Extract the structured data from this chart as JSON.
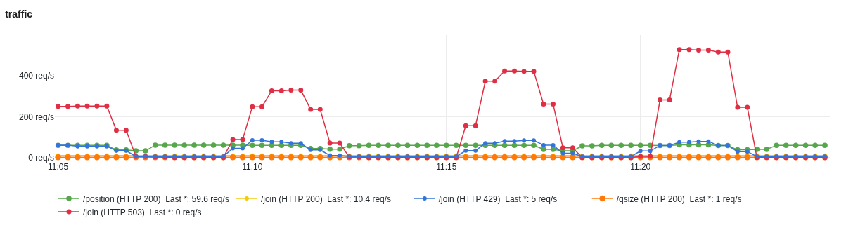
{
  "chart_data": {
    "type": "line",
    "title": "traffic",
    "legend": "bottom",
    "grid": true,
    "marker": "circle",
    "line_style": "solid",
    "x": [
      11.0833,
      11.0875,
      11.0917,
      11.0958,
      11.1,
      11.1042,
      11.1083,
      11.1125,
      11.1167,
      11.1208,
      11.125,
      11.1292,
      11.1333,
      11.1375,
      11.1417,
      11.1458,
      11.15,
      11.1542,
      11.1583,
      11.1625,
      11.1667,
      11.1708,
      11.175,
      11.1792,
      11.1833,
      11.1875,
      11.1917,
      11.1958,
      11.2,
      11.2042,
      11.2083,
      11.2125,
      11.2167,
      11.2208,
      11.225,
      11.2292,
      11.2333,
      11.2375,
      11.2417,
      11.2458,
      11.25,
      11.2542,
      11.2583,
      11.2625,
      11.2667,
      11.2708,
      11.275,
      11.2792,
      11.2833,
      11.2875,
      11.2917,
      11.2958,
      11.3,
      11.3042,
      11.3083,
      11.3125,
      11.3167,
      11.3208,
      11.325,
      11.3292,
      11.3333,
      11.3375,
      11.3417,
      11.3458,
      11.35,
      11.3542,
      11.3583,
      11.3625,
      11.3667,
      11.3708,
      11.375,
      11.3792,
      11.3833,
      11.3875,
      11.3917,
      11.3958,
      11.4,
      11.4042,
      11.4083,
      11.4125
    ],
    "xlim": [
      11.0819,
      11.4146
    ],
    "xticks": [
      {
        "value": 11.0833,
        "label": "11:05"
      },
      {
        "value": 11.1667,
        "label": "11:10"
      },
      {
        "value": 11.25,
        "label": "11:15"
      },
      {
        "value": 11.3333,
        "label": "11:20"
      }
    ],
    "ylim": [
      -15,
      600
    ],
    "yticks": [
      {
        "value": 0,
        "label": "0 req/s"
      },
      {
        "value": 200,
        "label": "200 req/s"
      },
      {
        "value": 400,
        "label": "400 req/s"
      }
    ],
    "series": [
      {
        "name": "/position (HTTP 200)  Last *: 59.6 req/s",
        "color": "#56a64b",
        "values": [
          60,
          60,
          60,
          60,
          60,
          60,
          37,
          37,
          33,
          33,
          61,
          61,
          61,
          61,
          61,
          61,
          61,
          61,
          61,
          61,
          60,
          60,
          60,
          60,
          60,
          60,
          44,
          44,
          41,
          41,
          58,
          58,
          60,
          60,
          60,
          60,
          60,
          60,
          60,
          60,
          60,
          60,
          60,
          60,
          60,
          60,
          60,
          60,
          60,
          60,
          40,
          40,
          33,
          33,
          57,
          57,
          60,
          60,
          60,
          60,
          60,
          60,
          59,
          59,
          62,
          62,
          62,
          62,
          59,
          59,
          38,
          38,
          40,
          40,
          60,
          60,
          60,
          60,
          60,
          60
        ]
      },
      {
        "name": "/join (HTTP 200)  Last *: 10.4 req/s",
        "color": "#f2cc0c",
        "values": [
          10,
          10,
          10,
          10,
          10,
          10,
          10,
          10,
          10,
          10,
          10,
          10,
          10,
          10,
          10,
          10,
          10,
          10,
          10,
          10,
          10,
          10,
          10,
          10,
          10,
          10,
          10,
          10,
          10,
          10,
          10,
          10,
          10,
          10,
          10,
          10,
          10,
          10,
          10,
          10,
          10,
          10,
          10,
          10,
          10,
          10,
          10,
          10,
          10,
          10,
          10,
          10,
          10,
          10,
          10,
          10,
          10,
          10,
          10,
          10,
          10,
          10,
          10,
          10,
          10,
          10,
          10,
          10,
          10,
          10,
          10,
          10,
          10,
          10,
          10,
          10,
          10,
          10,
          10,
          10
        ]
      },
      {
        "name": "/join (HTTP 429)  Last *: 5 req/s",
        "color": "#3274d9",
        "values": [
          61,
          61,
          55,
          55,
          55,
          55,
          34,
          34,
          5,
          5,
          5,
          5,
          5,
          5,
          5,
          5,
          5,
          5,
          45,
          45,
          85,
          85,
          77,
          77,
          70,
          70,
          37,
          37,
          10,
          10,
          5,
          5,
          5,
          5,
          5,
          5,
          5,
          5,
          5,
          5,
          5,
          5,
          34,
          34,
          70,
          70,
          80,
          80,
          84,
          84,
          61,
          61,
          21,
          21,
          5,
          5,
          5,
          5,
          5,
          5,
          32,
          32,
          59,
          59,
          75,
          75,
          79,
          79,
          59,
          59,
          29,
          29,
          5,
          5,
          5,
          5,
          5,
          5,
          5,
          5
        ]
      },
      {
        "name": "/qsize (HTTP 200)  Last *: 1 req/s",
        "color": "#ff780a",
        "values": [
          1,
          1,
          1,
          1,
          1,
          1,
          1,
          1,
          1,
          1,
          1,
          1,
          1,
          1,
          1,
          1,
          1,
          1,
          1,
          1,
          1,
          1,
          1,
          1,
          1,
          1,
          1,
          1,
          1,
          1,
          1,
          1,
          1,
          1,
          1,
          1,
          1,
          1,
          1,
          1,
          1,
          1,
          1,
          1,
          1,
          1,
          1,
          1,
          1,
          1,
          1,
          1,
          1,
          1,
          1,
          1,
          1,
          1,
          1,
          1,
          1,
          1,
          1,
          1,
          1,
          1,
          1,
          1,
          1,
          1,
          1,
          1,
          1,
          1,
          1,
          1,
          1,
          1,
          1,
          1
        ]
      },
      {
        "name": "/join (HTTP 503)  Last *: 0 req/s",
        "color": "#e02f44",
        "values": [
          250,
          250,
          252,
          252,
          252,
          252,
          134,
          134,
          5,
          5,
          2,
          2,
          0,
          0,
          0,
          0,
          0,
          0,
          88,
          88,
          249,
          249,
          327,
          327,
          330,
          330,
          236,
          236,
          71,
          71,
          2,
          2,
          0,
          0,
          0,
          0,
          0,
          0,
          0,
          0,
          0,
          0,
          156,
          156,
          374,
          374,
          424,
          424,
          422,
          422,
          262,
          262,
          48,
          48,
          0,
          0,
          0,
          0,
          0,
          0,
          6,
          6,
          282,
          282,
          529,
          529,
          526,
          526,
          517,
          517,
          246,
          246,
          0,
          0,
          0,
          0,
          0,
          0,
          0,
          0
        ]
      }
    ]
  }
}
